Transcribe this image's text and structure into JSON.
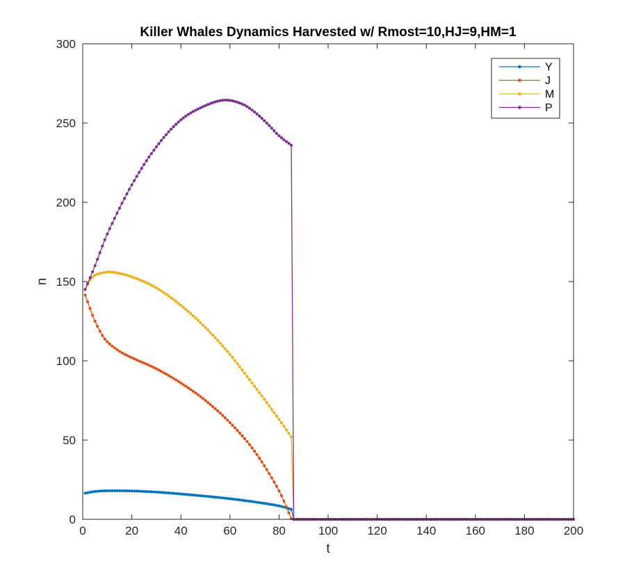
{
  "chart_data": {
    "type": "line",
    "title": "Killer Whales Dynamics Harvested w/ Rmost=10,HJ=9,HM=1",
    "xlabel": "t",
    "ylabel": "n",
    "xlim": [
      0,
      200
    ],
    "ylim": [
      0,
      300
    ],
    "xticks": [
      0,
      20,
      40,
      60,
      80,
      100,
      120,
      140,
      160,
      180,
      200
    ],
    "yticks": [
      0,
      50,
      100,
      150,
      200,
      250,
      300
    ],
    "grid": false,
    "legend_position": "top-right",
    "markers": true,
    "x_step": 1,
    "series": [
      {
        "name": "Y",
        "color": "#0072BD",
        "knots": [
          [
            1,
            16.5
          ],
          [
            5,
            17.6
          ],
          [
            10,
            18.0
          ],
          [
            20,
            17.9
          ],
          [
            30,
            17.2
          ],
          [
            40,
            16.0
          ],
          [
            50,
            14.6
          ],
          [
            60,
            13.0
          ],
          [
            70,
            11.0
          ],
          [
            80,
            8.5
          ],
          [
            85,
            6.3
          ],
          [
            86,
            0
          ],
          [
            200,
            0
          ]
        ]
      },
      {
        "name": "J",
        "color": "#D95319",
        "knots": [
          [
            1,
            141.5
          ],
          [
            3,
            133
          ],
          [
            5,
            125
          ],
          [
            8,
            116
          ],
          [
            10,
            112
          ],
          [
            15,
            106
          ],
          [
            20,
            102
          ],
          [
            30,
            95
          ],
          [
            40,
            86
          ],
          [
            50,
            75
          ],
          [
            60,
            61
          ],
          [
            70,
            43
          ],
          [
            80,
            18
          ],
          [
            85,
            0.5
          ],
          [
            86,
            0
          ],
          [
            200,
            0
          ]
        ]
      },
      {
        "name": "M",
        "color": "#EDB120",
        "knots": [
          [
            1,
            145
          ],
          [
            3,
            151
          ],
          [
            5,
            154
          ],
          [
            8,
            155.5
          ],
          [
            12,
            156
          ],
          [
            20,
            153
          ],
          [
            30,
            146
          ],
          [
            40,
            135
          ],
          [
            50,
            121
          ],
          [
            60,
            104
          ],
          [
            70,
            84
          ],
          [
            80,
            63
          ],
          [
            85,
            52
          ],
          [
            86,
            0
          ],
          [
            200,
            0
          ]
        ]
      },
      {
        "name": "P",
        "color": "#7E2F8E",
        "knots": [
          [
            1,
            145
          ],
          [
            5,
            160
          ],
          [
            10,
            180
          ],
          [
            20,
            211
          ],
          [
            30,
            235
          ],
          [
            40,
            252
          ],
          [
            50,
            261
          ],
          [
            58,
            264.5
          ],
          [
            65,
            262
          ],
          [
            70,
            257
          ],
          [
            75,
            250
          ],
          [
            80,
            242
          ],
          [
            85,
            236
          ],
          [
            86,
            0
          ],
          [
            200,
            0
          ]
        ]
      }
    ]
  }
}
